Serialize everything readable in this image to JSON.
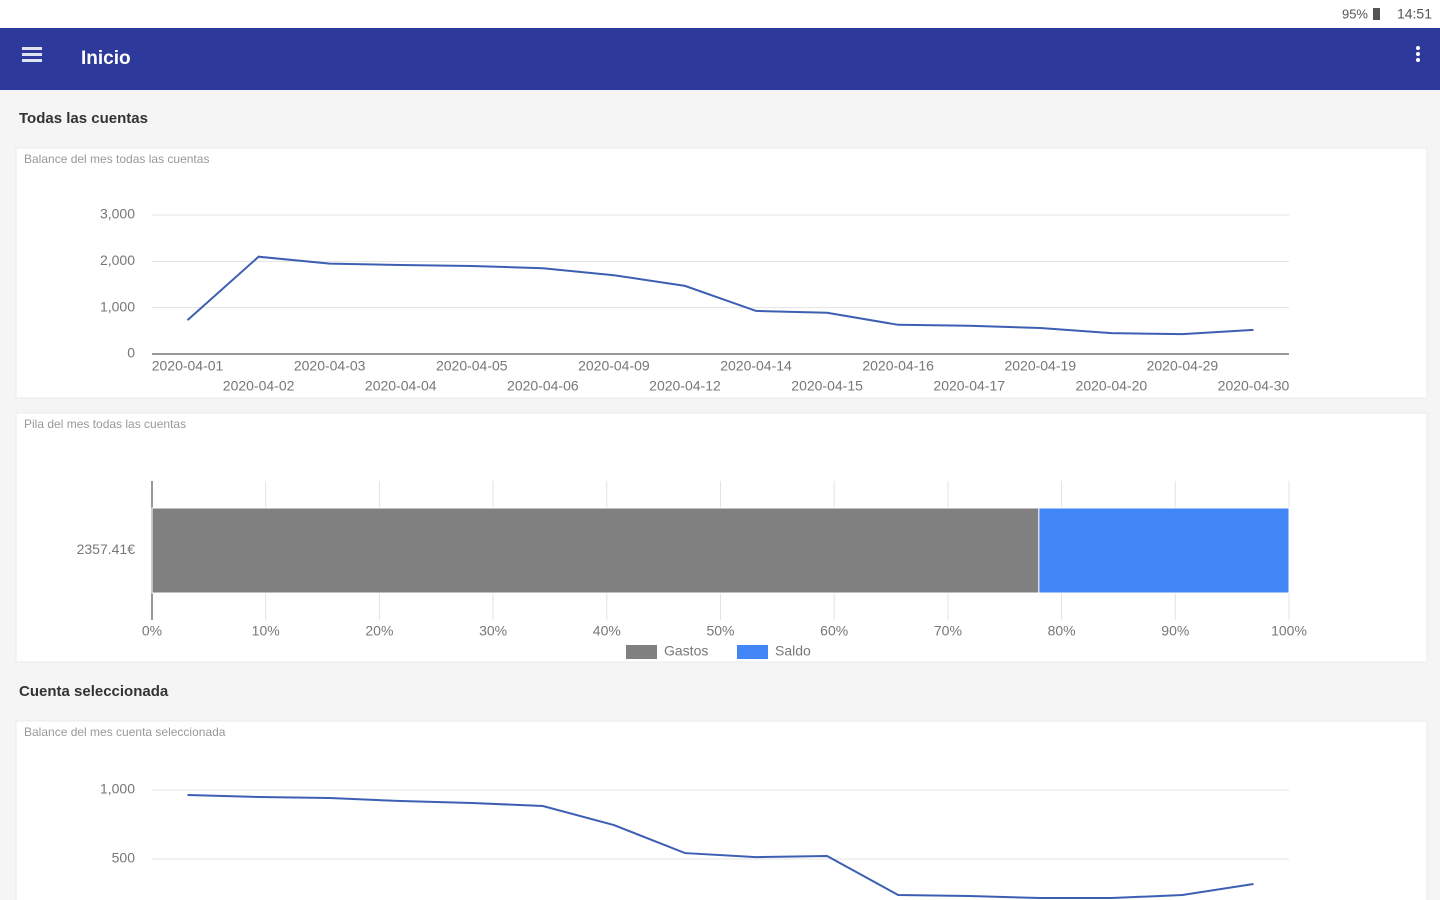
{
  "status_bar": {
    "battery": "95%",
    "time": "14:51"
  },
  "app_bar": {
    "title": "Inicio"
  },
  "sections": [
    {
      "title": "Todas las cuentas"
    },
    {
      "title": "Cuenta seleccionada"
    }
  ],
  "chart_data": [
    {
      "type": "line",
      "title": "Balance del mes todas las cuentas",
      "categories": [
        "2020-04-01",
        "2020-04-02",
        "2020-04-03",
        "2020-04-04",
        "2020-04-05",
        "2020-04-06",
        "2020-04-09",
        "2020-04-12",
        "2020-04-14",
        "2020-04-15",
        "2020-04-16",
        "2020-04-17",
        "2020-04-19",
        "2020-04-20",
        "2020-04-29",
        "2020-04-30"
      ],
      "values": [
        730,
        2100,
        1950,
        1920,
        1900,
        1850,
        1700,
        1470,
        930,
        890,
        630,
        610,
        560,
        450,
        430,
        520
      ],
      "color": "#3d5fb3",
      "ylim": [
        0,
        3000
      ],
      "yticks": [
        0,
        {
          "value": 1000,
          "label": "1,000"
        },
        {
          "value": 2000,
          "label": "2,000"
        },
        {
          "value": 3000,
          "label": "3,000"
        }
      ],
      "grid": true
    },
    {
      "type": "bar",
      "orientation": "horizontal",
      "stacked": true,
      "title": "Pila del mes todas las cuentas",
      "categories": [
        "2357.41€"
      ],
      "series": [
        {
          "name": "Gastos",
          "color": "#808080",
          "values": [
            78
          ]
        },
        {
          "name": "Saldo",
          "color": "#4285f4",
          "values": [
            22
          ]
        }
      ],
      "xlim": [
        0,
        100
      ],
      "xticks": [
        {
          "value": 0,
          "label": "0%"
        },
        {
          "value": 10,
          "label": "10%"
        },
        {
          "value": 20,
          "label": "20%"
        },
        {
          "value": 30,
          "label": "30%"
        },
        {
          "value": 40,
          "label": "40%"
        },
        {
          "value": 50,
          "label": "50%"
        },
        {
          "value": 60,
          "label": "60%"
        },
        {
          "value": 70,
          "label": "70%"
        },
        {
          "value": 80,
          "label": "80%"
        },
        {
          "value": 90,
          "label": "90%"
        },
        {
          "value": 100,
          "label": "100%"
        }
      ],
      "legend": "bottom"
    },
    {
      "type": "line",
      "title": "Balance del mes cuenta seleccionada",
      "values": [
        964,
        949,
        942,
        920,
        906,
        884,
        746,
        543,
        514,
        522,
        239,
        232,
        217,
        217,
        239,
        319
      ],
      "color": "#3d5fb3",
      "ylim": [
        0,
        1000
      ],
      "yticks": [
        500,
        {
          "value": 1000,
          "label": "1,000"
        }
      ],
      "grid": true
    }
  ]
}
